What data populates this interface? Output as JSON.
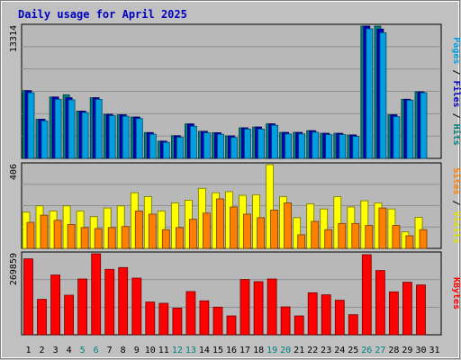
{
  "chart_data": {
    "type": "bar",
    "title": "Daily usage for April 2025",
    "categories": [
      "1",
      "2",
      "3",
      "4",
      "5",
      "6",
      "7",
      "8",
      "9",
      "10",
      "11",
      "12",
      "13",
      "14",
      "15",
      "16",
      "17",
      "18",
      "19",
      "20",
      "21",
      "22",
      "23",
      "24",
      "25",
      "26",
      "27",
      "28",
      "29",
      "30",
      "31"
    ],
    "weekend_days": [
      "5",
      "6",
      "12",
      "13",
      "19",
      "20",
      "26",
      "27"
    ],
    "panels": [
      {
        "id": "top",
        "ymax_label": "13314",
        "ylim": [
          0,
          13314
        ],
        "side_labels": [
          {
            "text": "Pages",
            "color": "#00a0e0"
          },
          {
            "text": " / ",
            "color": "#000000"
          },
          {
            "text": "Files",
            "color": "#0000c0"
          },
          {
            "text": " / ",
            "color": "#000000"
          },
          {
            "text": "Hits",
            "color": "#008080"
          }
        ],
        "series": [
          {
            "name": "Hits",
            "color": "#008080",
            "values": [
              6820,
              3940,
              6180,
              6400,
              4760,
              6100,
              4440,
              4390,
              4170,
              2600,
              1740,
              2280,
              3470,
              2730,
              2580,
              2270,
              3080,
              3160,
              3480,
              2620,
              2620,
              2790,
              2530,
              2530,
              2360,
              13314,
              13314,
              4390,
              5950,
              6700,
              0
            ]
          },
          {
            "name": "Files",
            "color": "#0000c0",
            "values": [
              6820,
              3940,
              6180,
              6100,
              4760,
              6100,
              4440,
              4390,
              4170,
              2600,
              1740,
              2280,
              3470,
              2730,
              2580,
              2270,
              3080,
              3160,
              3480,
              2620,
              2620,
              2790,
              2530,
              2530,
              2360,
              13314,
              13014,
              4390,
              5950,
              6700,
              0
            ]
          },
          {
            "name": "Pages",
            "color": "#00a0e0",
            "values": [
              6600,
              3780,
              5940,
              5900,
              4620,
              5940,
              4300,
              4250,
              4010,
              2440,
              1610,
              2130,
              3230,
              2580,
              2430,
              2110,
              2950,
              2950,
              3330,
              2460,
              2460,
              2640,
              2390,
              2390,
              2210,
              13040,
              12640,
              4200,
              5860,
              6600,
              0
            ]
          }
        ]
      },
      {
        "id": "mid",
        "ymax_label": "406",
        "ylim": [
          0,
          406
        ],
        "side_labels": [
          {
            "text": "Sites",
            "color": "#ff8000"
          },
          {
            "text": " / ",
            "color": "#000000"
          },
          {
            "text": "Visits",
            "color": "#e0e000"
          }
        ],
        "series": [
          {
            "name": "Visits",
            "color": "#ffff00",
            "values": [
              176,
              206,
              181,
              206,
              181,
              154,
              196,
              206,
              270,
              251,
              181,
              221,
              234,
              291,
              270,
              275,
              257,
              260,
              406,
              251,
              149,
              216,
              191,
              251,
              201,
              231,
              221,
              191,
              80,
              151,
              0
            ]
          },
          {
            "name": "Sites",
            "color": "#ff8000",
            "values": [
              126,
              161,
              136,
              116,
              101,
              96,
              101,
              106,
              181,
              166,
              91,
              101,
              141,
              171,
              240,
              201,
              166,
              149,
              186,
              221,
              66,
              131,
              91,
              121,
              121,
              111,
              196,
              111,
              61,
              91,
              0
            ]
          }
        ]
      },
      {
        "id": "bot",
        "ymax_label": "269859",
        "ylim": [
          0,
          269859
        ],
        "side_labels": [
          {
            "text": "KBytes",
            "color": "#ff0000"
          }
        ],
        "series": [
          {
            "name": "KBytes",
            "color": "#ff0000",
            "values": [
              253000,
              118000,
              199000,
              132000,
              186000,
              269859,
              218000,
              224000,
              189000,
              109000,
              105000,
              89000,
              144000,
              113000,
              92000,
              63000,
              184000,
              177000,
              186000,
              93000,
              63000,
              140000,
              133000,
              115000,
              67000,
              267000,
              214000,
              143000,
              175000,
              166000,
              0
            ]
          }
        ]
      }
    ]
  }
}
